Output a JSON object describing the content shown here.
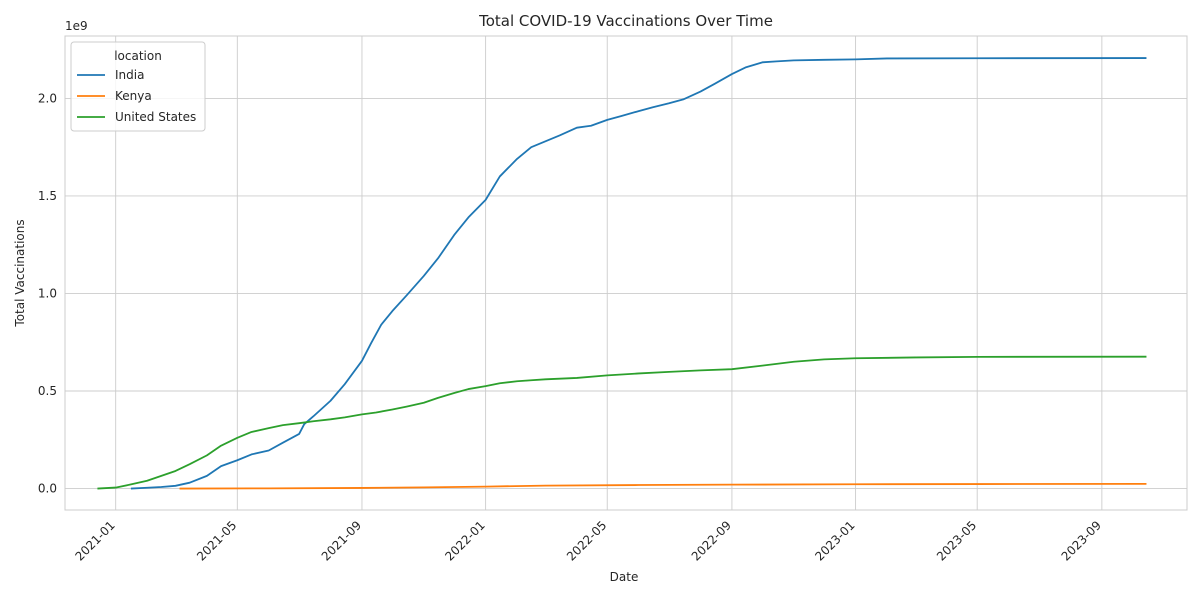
{
  "chart_data": {
    "type": "line",
    "title": "Total COVID-19 Vaccinations Over Time",
    "xlabel": "Date",
    "ylabel": "Total Vaccinations",
    "y_scale_label": "1e9",
    "x_tick_labels": [
      "2021-01",
      "2021-05",
      "2021-09",
      "2022-01",
      "2022-05",
      "2022-09",
      "2023-01",
      "2023-05",
      "2023-09"
    ],
    "y_tick_labels": [
      "0.0",
      "0.5",
      "1.0",
      "1.5",
      "2.0"
    ],
    "y_ticks": [
      0.0,
      0.5,
      1.0,
      1.5,
      2.0
    ],
    "ylim": [
      -0.11,
      2.32
    ],
    "xlim": [
      "2020-11-12",
      "2023-11-24"
    ],
    "grid": true,
    "legend_title": "location",
    "legend_position": "top-left",
    "series": [
      {
        "name": "India",
        "color": "#1f77b4",
        "points": [
          [
            "2021-01-16",
            0.0
          ],
          [
            "2021-02-01",
            0.004
          ],
          [
            "2021-02-15",
            0.008
          ],
          [
            "2021-03-01",
            0.014
          ],
          [
            "2021-03-15",
            0.03
          ],
          [
            "2021-04-01",
            0.065
          ],
          [
            "2021-04-15",
            0.115
          ],
          [
            "2021-05-01",
            0.145
          ],
          [
            "2021-05-15",
            0.175
          ],
          [
            "2021-06-01",
            0.195
          ],
          [
            "2021-06-15",
            0.235
          ],
          [
            "2021-07-01",
            0.28
          ],
          [
            "2021-07-06",
            0.33
          ],
          [
            "2021-07-15",
            0.37
          ],
          [
            "2021-08-01",
            0.45
          ],
          [
            "2021-08-15",
            0.535
          ],
          [
            "2021-09-01",
            0.655
          ],
          [
            "2021-09-10",
            0.745
          ],
          [
            "2021-09-20",
            0.84
          ],
          [
            "2021-10-01",
            0.91
          ],
          [
            "2021-10-15",
            0.99
          ],
          [
            "2021-11-01",
            1.09
          ],
          [
            "2021-11-15",
            1.18
          ],
          [
            "2021-12-01",
            1.3
          ],
          [
            "2021-12-15",
            1.39
          ],
          [
            "2022-01-01",
            1.48
          ],
          [
            "2022-01-15",
            1.6
          ],
          [
            "2022-02-01",
            1.69
          ],
          [
            "2022-02-15",
            1.75
          ],
          [
            "2022-03-01",
            1.78
          ],
          [
            "2022-03-15",
            1.81
          ],
          [
            "2022-04-01",
            1.85
          ],
          [
            "2022-04-15",
            1.86
          ],
          [
            "2022-05-01",
            1.89
          ],
          [
            "2022-05-15",
            1.91
          ],
          [
            "2022-06-01",
            1.935
          ],
          [
            "2022-06-15",
            1.955
          ],
          [
            "2022-07-01",
            1.975
          ],
          [
            "2022-07-15",
            1.995
          ],
          [
            "2022-08-01",
            2.035
          ],
          [
            "2022-08-15",
            2.075
          ],
          [
            "2022-09-01",
            2.125
          ],
          [
            "2022-09-15",
            2.16
          ],
          [
            "2022-10-01",
            2.185
          ],
          [
            "2022-10-15",
            2.19
          ],
          [
            "2022-11-01",
            2.195
          ],
          [
            "2022-12-01",
            2.198
          ],
          [
            "2023-01-01",
            2.2
          ],
          [
            "2023-02-01",
            2.205
          ],
          [
            "2023-05-01",
            2.206
          ],
          [
            "2023-10-15",
            2.207
          ]
        ]
      },
      {
        "name": "Kenya",
        "color": "#ff7f0e",
        "points": [
          [
            "2021-03-05",
            0.0
          ],
          [
            "2021-06-01",
            0.001
          ],
          [
            "2021-09-01",
            0.003
          ],
          [
            "2021-11-01",
            0.006
          ],
          [
            "2022-01-01",
            0.01
          ],
          [
            "2022-03-01",
            0.015
          ],
          [
            "2022-06-01",
            0.018
          ],
          [
            "2022-09-01",
            0.02
          ],
          [
            "2023-01-01",
            0.022
          ],
          [
            "2023-05-01",
            0.023
          ],
          [
            "2023-10-15",
            0.024
          ]
        ]
      },
      {
        "name": "United States",
        "color": "#2ca02c",
        "points": [
          [
            "2020-12-14",
            0.0
          ],
          [
            "2021-01-01",
            0.005
          ],
          [
            "2021-01-15",
            0.02
          ],
          [
            "2021-02-01",
            0.04
          ],
          [
            "2021-02-15",
            0.065
          ],
          [
            "2021-03-01",
            0.09
          ],
          [
            "2021-03-15",
            0.125
          ],
          [
            "2021-04-01",
            0.17
          ],
          [
            "2021-04-15",
            0.22
          ],
          [
            "2021-05-01",
            0.26
          ],
          [
            "2021-05-15",
            0.29
          ],
          [
            "2021-06-01",
            0.31
          ],
          [
            "2021-06-15",
            0.325
          ],
          [
            "2021-07-01",
            0.335
          ],
          [
            "2021-07-15",
            0.345
          ],
          [
            "2021-08-01",
            0.355
          ],
          [
            "2021-08-15",
            0.365
          ],
          [
            "2021-09-01",
            0.38
          ],
          [
            "2021-09-15",
            0.39
          ],
          [
            "2021-10-01",
            0.405
          ],
          [
            "2021-10-15",
            0.42
          ],
          [
            "2021-11-01",
            0.44
          ],
          [
            "2021-11-15",
            0.465
          ],
          [
            "2021-12-01",
            0.49
          ],
          [
            "2021-12-15",
            0.51
          ],
          [
            "2022-01-01",
            0.525
          ],
          [
            "2022-01-15",
            0.54
          ],
          [
            "2022-02-01",
            0.55
          ],
          [
            "2022-02-15",
            0.555
          ],
          [
            "2022-03-01",
            0.56
          ],
          [
            "2022-04-01",
            0.567
          ],
          [
            "2022-05-01",
            0.58
          ],
          [
            "2022-06-01",
            0.59
          ],
          [
            "2022-07-01",
            0.598
          ],
          [
            "2022-08-01",
            0.606
          ],
          [
            "2022-09-01",
            0.612
          ],
          [
            "2022-10-01",
            0.63
          ],
          [
            "2022-11-01",
            0.65
          ],
          [
            "2022-12-01",
            0.662
          ],
          [
            "2023-01-01",
            0.668
          ],
          [
            "2023-03-01",
            0.672
          ],
          [
            "2023-05-01",
            0.675
          ],
          [
            "2023-10-15",
            0.676
          ]
        ]
      }
    ]
  }
}
